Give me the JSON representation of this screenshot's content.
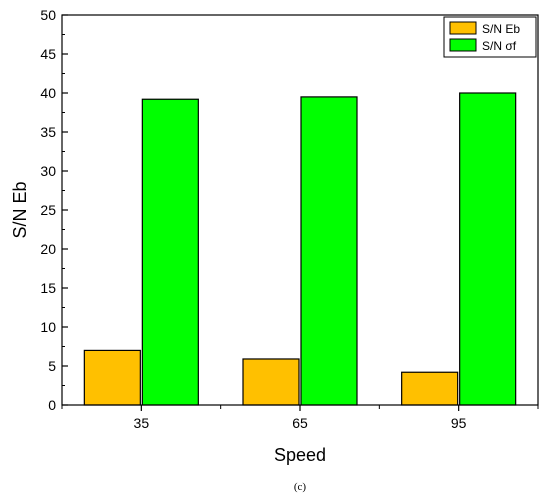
{
  "chart_data": {
    "type": "bar",
    "categories": [
      "35",
      "65",
      "95"
    ],
    "series": [
      {
        "name": "S/N Eb",
        "values": [
          7.0,
          5.9,
          4.2
        ],
        "color": "#ffc000"
      },
      {
        "name": "S/N σf",
        "values": [
          39.2,
          39.5,
          40.0
        ],
        "color": "#00ff00"
      }
    ],
    "xlabel": "Speed",
    "ylabel": "S/N Eb",
    "ylim": [
      0,
      50
    ],
    "yticks": [
      "0",
      "5",
      "10",
      "15",
      "20",
      "25",
      "30",
      "35",
      "40",
      "45",
      "50"
    ],
    "grid": false,
    "legend_position": "top-right"
  },
  "caption": "(c)"
}
